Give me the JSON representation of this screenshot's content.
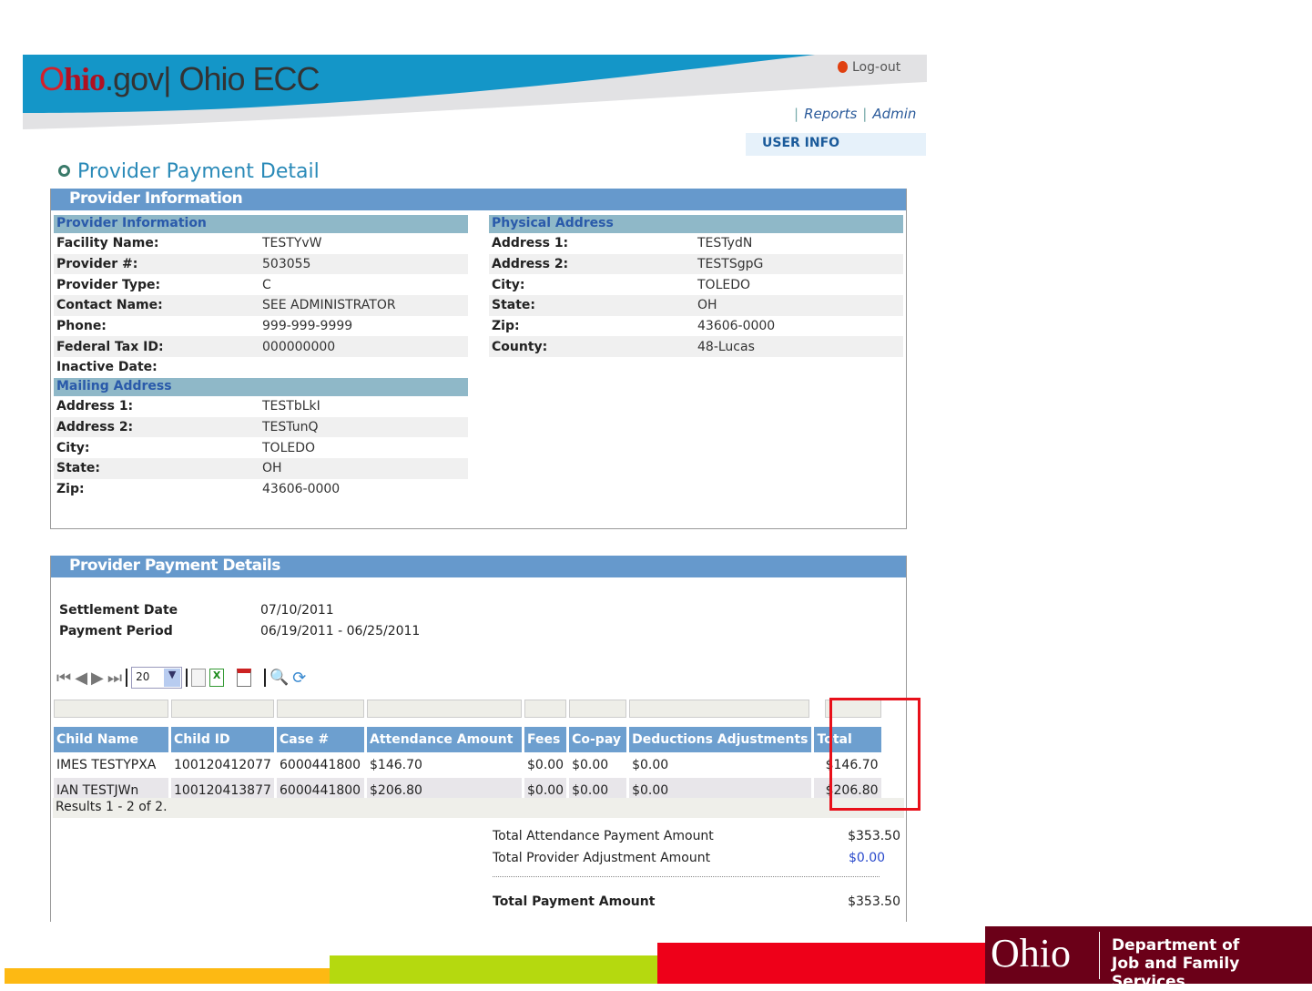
{
  "header": {
    "logo_ohio": "Ohio.gov",
    "logo_app": "Ohio ECC",
    "logout": "Log-out",
    "nav": [
      "Reports",
      "Admin"
    ],
    "user_info": "USER INFO"
  },
  "page_title": "Provider Payment Detail",
  "provider_info": {
    "panel_title": "Provider Information",
    "provider_section": {
      "title": "Provider Information",
      "rows": [
        {
          "label": "Facility Name:",
          "value": "TESTYvW"
        },
        {
          "label": "Provider #:",
          "value": "503055"
        },
        {
          "label": "Provider Type:",
          "value": "C"
        },
        {
          "label": "Contact Name:",
          "value": "SEE ADMINISTRATOR"
        },
        {
          "label": "Phone:",
          "value": "999-999-9999"
        },
        {
          "label": "Federal Tax ID:",
          "value": "000000000"
        },
        {
          "label": "Inactive Date:",
          "value": ""
        }
      ]
    },
    "mailing_section": {
      "title": "Mailing Address",
      "rows": [
        {
          "label": "Address 1:",
          "value": "TESTbLkI"
        },
        {
          "label": "Address 2:",
          "value": "TESTunQ"
        },
        {
          "label": "City:",
          "value": "TOLEDO"
        },
        {
          "label": "State:",
          "value": "OH"
        },
        {
          "label": "Zip:",
          "value": "43606-0000"
        }
      ]
    },
    "physical_section": {
      "title": "Physical Address",
      "rows": [
        {
          "label": "Address 1:",
          "value": "TESTydN"
        },
        {
          "label": "Address 2:",
          "value": "TESTSgpG"
        },
        {
          "label": "City:",
          "value": "TOLEDO"
        },
        {
          "label": "State:",
          "value": "OH"
        },
        {
          "label": "Zip:",
          "value": "43606-0000"
        },
        {
          "label": "County:",
          "value": "48-Lucas"
        }
      ]
    }
  },
  "payment": {
    "panel_title": "Provider Payment Details",
    "settlement_label": "Settlement Date",
    "settlement_value": "07/10/2011",
    "period_label": "Payment Period",
    "period_value": "06/19/2011 - 06/25/2011",
    "page_size": "20",
    "columns": [
      "Child Name",
      "Child ID",
      "Case #",
      "Attendance Amount",
      "Fees",
      "Co-pay",
      "Deductions Adjustments",
      "Total"
    ],
    "rows": [
      [
        "IMES TESTYPXA",
        "100120412077",
        "6000441800",
        "$146.70",
        "$0.00",
        "$0.00",
        "$0.00",
        "$146.70"
      ],
      [
        "IAN TESTJWn",
        "100120413877",
        "6000441800",
        "$206.80",
        "$0.00",
        "$0.00",
        "$0.00",
        "$206.80"
      ]
    ],
    "results": "Results 1 - 2 of 2.",
    "total_attendance_label": "Total Attendance Payment Amount",
    "total_attendance_value": "$353.50",
    "total_adjustment_label": "Total Provider Adjustment Amount",
    "total_adjustment_value": "$0.00",
    "total_payment_label": "Total Payment Amount",
    "total_payment_value": "$353.50"
  },
  "footer": {
    "logo_ohio": "Ohio",
    "dept_line1": "Department of",
    "dept_line2": "Job and Family Services"
  },
  "colors": {
    "panel_header": "#6699cc",
    "section_header": "#8fb8c8",
    "highlight": "#e8101a",
    "footer_maroon": "#6b0018"
  }
}
